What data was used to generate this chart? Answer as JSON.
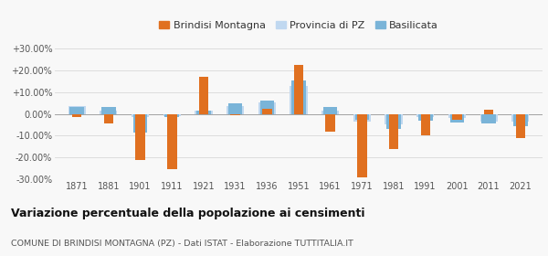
{
  "years": [
    1871,
    1881,
    1901,
    1911,
    1921,
    1931,
    1936,
    1951,
    1961,
    1971,
    1981,
    1991,
    2001,
    2011,
    2021
  ],
  "brindisi": [
    -1.5,
    -4.5,
    -21.0,
    -25.5,
    17.0,
    -0.5,
    2.5,
    22.5,
    -8.0,
    -29.0,
    -16.0,
    -10.0,
    -2.5,
    2.0,
    -11.0
  ],
  "provincia": [
    3.5,
    1.5,
    -1.5,
    -1.0,
    1.5,
    3.5,
    5.5,
    13.0,
    1.5,
    -3.5,
    -5.0,
    -1.5,
    -2.0,
    -3.5,
    -3.5
  ],
  "basilicata": [
    3.0,
    3.0,
    -8.5,
    -1.5,
    1.5,
    5.0,
    6.0,
    15.5,
    3.0,
    -2.5,
    -7.0,
    -3.0,
    -4.0,
    -4.5,
    -5.5
  ],
  "color_brindisi": "#e07020",
  "color_provincia": "#c0d8f0",
  "color_basilicata": "#7ab4d8",
  "ylim": [
    -30,
    30
  ],
  "yticks": [
    -30,
    -20,
    -10,
    0,
    10,
    20,
    30
  ],
  "ytick_labels": [
    "-30.00%",
    "-20.00%",
    "-10.00%",
    "0.00%",
    "+10.00%",
    "+20.00%",
    "+30.00%"
  ],
  "title": "Variazione percentuale della popolazione ai censimenti",
  "subtitle": "COMUNE DI BRINDISI MONTAGNA (PZ) - Dati ISTAT - Elaborazione TUTTITALIA.IT",
  "legend_labels": [
    "Brindisi Montagna",
    "Provincia di PZ",
    "Basilicata"
  ],
  "background_color": "#f8f8f8",
  "grid_color": "#dddddd"
}
